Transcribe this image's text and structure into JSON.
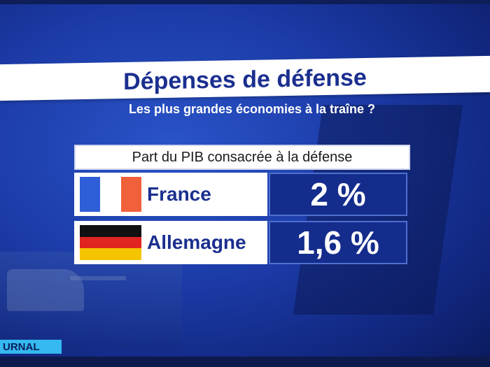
{
  "title": "Dépenses de défense",
  "subtitle": "Les plus grandes économies à la traîne ?",
  "table": {
    "header": "Part du PIB consacrée à la défense",
    "rows": [
      {
        "country": "France",
        "value": "2 %",
        "flag": "flag-france"
      },
      {
        "country": "Allemagne",
        "value": "1,6 %",
        "flag": "flag-germany"
      }
    ]
  },
  "ticker_label": "URNAL",
  "colors": {
    "title_blue": "#1b2f8f",
    "value_box": "#142c8c",
    "fr_blue": "#2f5fd8",
    "fr_white": "#ffffff",
    "fr_red": "#f0603a",
    "de_black": "#111111",
    "de_red": "#e0241f",
    "de_gold": "#f5c400"
  }
}
